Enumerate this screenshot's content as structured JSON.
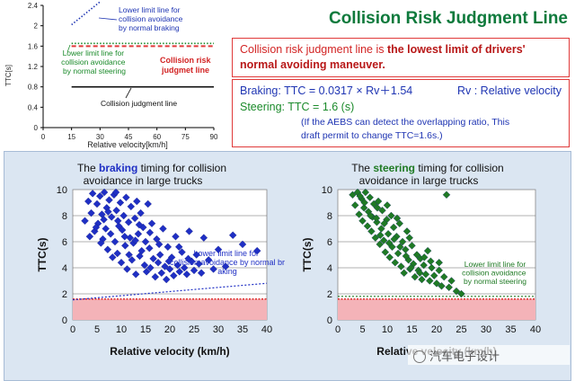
{
  "header": {
    "title": "Collision Risk Judgment Line",
    "definition_part1": "Collision risk judgment line is ",
    "definition_part2": "the lowest limit of drivers' normal avoiding maneuver.",
    "braking_formula": "Braking: TTC = 0.0317 × Rv＋1.54",
    "rv_note": "Rv : Relative velocity",
    "steering_formula": "Steering: TTC = 1.6 (s)",
    "aebs_note_line1": "(If the AEBS can detect the overlapping ratio, This",
    "aebs_note_line2": "draft permit to change TTC=1.6s.)"
  },
  "watermark": "汽车电子设计",
  "colors": {
    "title_green": "#0e7a3c",
    "red": "#e03a3a",
    "blue": "#1f35b3",
    "green": "#1a8a2a",
    "pink_band": "#f4b3b8",
    "panel_bg": "#dbe6f2"
  },
  "chart_data": [
    {
      "type": "line",
      "xlabel": "Relative velocity[km/h]",
      "ylabel": "TTC[s]",
      "xlim": [
        0,
        90
      ],
      "ylim": [
        0,
        2.4
      ],
      "xticks": [
        "0",
        "15",
        "30",
        "45",
        "60",
        "75",
        "90"
      ],
      "yticks": [
        "0",
        "0.4",
        "0.8",
        "1.2",
        "1.6",
        "2",
        "2.4"
      ],
      "series": [
        {
          "label": "Lower limit line for collision avoidance by normal braking",
          "style": "dotted",
          "color": "#1f35b3",
          "x": [
            15,
            30
          ],
          "y": [
            2.02,
            2.48
          ]
        },
        {
          "label": "Lower limit line for collision avoidance by normal steering",
          "style": "dotted",
          "color": "#1a8a2a",
          "x": [
            15,
            90
          ],
          "y": [
            1.6,
            1.6
          ]
        },
        {
          "label": "Collision risk judgmet line",
          "style": "dashed",
          "color": "#e03a3a",
          "x": [
            15,
            90
          ],
          "y": [
            1.6,
            1.6
          ]
        },
        {
          "label": "Collision judgment line",
          "style": "solid",
          "color": "#111111",
          "x": [
            15,
            90
          ],
          "y": [
            0.8,
            0.8
          ]
        }
      ],
      "annotations": [
        "Lower limit line for collision avoidance by normal braking",
        "Lower limit line for collision avoidance by normal steering",
        "Collision risk judgmet line",
        "Collision judgment line"
      ]
    },
    {
      "type": "scatter",
      "title_pre": "The ",
      "title_key": "braking",
      "title_post": " timing for collision",
      "title_line2": "avoidance in large trucks",
      "xlabel": "Relative velocity (km/h)",
      "ylabel": "TTC(s)",
      "xlim": [
        0,
        40
      ],
      "ylim": [
        0,
        10
      ],
      "xticks": [
        "0",
        "5",
        "10",
        "15",
        "20",
        "25",
        "30",
        "35",
        "40"
      ],
      "yticks": [
        "0",
        "2",
        "4",
        "6",
        "8",
        "10"
      ],
      "color": "#1f2fc4",
      "line_label": "Lower limit line for collision avoidance by normal braking",
      "line": {
        "x": [
          0,
          40
        ],
        "y": [
          1.54,
          2.81
        ]
      },
      "points": [
        [
          2.5,
          7.6
        ],
        [
          3.2,
          9.1
        ],
        [
          3.8,
          8.2
        ],
        [
          4.1,
          9.7
        ],
        [
          4.5,
          6.8
        ],
        [
          5.0,
          8.9
        ],
        [
          5.2,
          7.4
        ],
        [
          5.6,
          9.5
        ],
        [
          6.0,
          8.1
        ],
        [
          6.2,
          6.2
        ],
        [
          6.5,
          9.8
        ],
        [
          6.8,
          7.0
        ],
        [
          7.0,
          8.6
        ],
        [
          7.2,
          5.4
        ],
        [
          7.5,
          9.2
        ],
        [
          7.8,
          6.6
        ],
        [
          8.0,
          7.9
        ],
        [
          8.2,
          4.8
        ],
        [
          8.5,
          9.6
        ],
        [
          8.7,
          6.0
        ],
        [
          9.0,
          8.4
        ],
        [
          9.2,
          5.1
        ],
        [
          9.5,
          7.2
        ],
        [
          9.8,
          9.0
        ],
        [
          10.0,
          4.4
        ],
        [
          10.2,
          6.9
        ],
        [
          10.5,
          8.0
        ],
        [
          10.8,
          5.7
        ],
        [
          11.0,
          9.4
        ],
        [
          11.2,
          3.9
        ],
        [
          11.5,
          7.5
        ],
        [
          11.8,
          6.3
        ],
        [
          12.0,
          8.7
        ],
        [
          12.2,
          4.6
        ],
        [
          12.5,
          5.9
        ],
        [
          12.8,
          7.8
        ],
        [
          13.0,
          3.5
        ],
        [
          13.2,
          9.1
        ],
        [
          13.5,
          6.6
        ],
        [
          13.8,
          4.9
        ],
        [
          14.0,
          8.2
        ],
        [
          14.2,
          5.3
        ],
        [
          14.5,
          7.1
        ],
        [
          14.8,
          4.2
        ],
        [
          15.0,
          6.0
        ],
        [
          15.2,
          3.7
        ],
        [
          15.5,
          8.9
        ],
        [
          15.8,
          5.5
        ],
        [
          16.0,
          4.0
        ],
        [
          16.3,
          7.4
        ],
        [
          16.6,
          4.7
        ],
        [
          17.0,
          3.3
        ],
        [
          17.3,
          6.2
        ],
        [
          17.6,
          4.4
        ],
        [
          18.0,
          5.0
        ],
        [
          18.3,
          3.6
        ],
        [
          18.6,
          7.0
        ],
        [
          19.0,
          4.1
        ],
        [
          19.3,
          3.1
        ],
        [
          19.6,
          5.6
        ],
        [
          20.0,
          3.9
        ],
        [
          20.4,
          4.8
        ],
        [
          20.8,
          3.4
        ],
        [
          21.2,
          6.4
        ],
        [
          21.6,
          4.2
        ],
        [
          22.0,
          3.7
        ],
        [
          22.5,
          5.2
        ],
        [
          23.0,
          4.0
        ],
        [
          23.5,
          3.5
        ],
        [
          24.0,
          6.8
        ],
        [
          24.5,
          4.5
        ],
        [
          25.0,
          3.8
        ],
        [
          25.5,
          5.0
        ],
        [
          26.0,
          4.3
        ],
        [
          26.5,
          3.6
        ],
        [
          27.0,
          6.3
        ],
        [
          28.0,
          4.6
        ],
        [
          29.0,
          3.9
        ],
        [
          30.0,
          5.4
        ],
        [
          31.5,
          4.1
        ],
        [
          33.0,
          6.5
        ],
        [
          35.0,
          5.8
        ],
        [
          38.0,
          5.3
        ],
        [
          6.4,
          7.7
        ],
        [
          7.3,
          8.3
        ],
        [
          9.3,
          7.6
        ],
        [
          10.7,
          6.4
        ],
        [
          11.6,
          5.0
        ],
        [
          12.9,
          6.1
        ],
        [
          13.7,
          7.3
        ],
        [
          15.9,
          6.7
        ],
        [
          17.8,
          5.8
        ],
        [
          19.8,
          4.5
        ],
        [
          21.9,
          5.6
        ],
        [
          23.8,
          4.7
        ],
        [
          8.9,
          9.9
        ],
        [
          5.8,
          5.9
        ],
        [
          4.8,
          7.1
        ],
        [
          3.5,
          6.4
        ]
      ]
    },
    {
      "type": "scatter",
      "title_pre": "The ",
      "title_key": "steering",
      "title_post": " timing for collision",
      "title_line2": "avoidance in large trucks",
      "xlabel": "Relative velocity (km/h)",
      "ylabel": "TTC(s)",
      "xlim": [
        0,
        40
      ],
      "ylim": [
        0,
        10
      ],
      "xticks": [
        "0",
        "5",
        "10",
        "15",
        "20",
        "25",
        "30",
        "35",
        "40"
      ],
      "yticks": [
        "0",
        "2",
        "4",
        "6",
        "8",
        "10"
      ],
      "color": "#1f7a24",
      "line_label": "Lower limit line for collision avoidance by normal steering",
      "line": {
        "x": [
          0,
          40
        ],
        "y": [
          1.6,
          1.6
        ]
      },
      "points": [
        [
          3.0,
          9.6
        ],
        [
          3.5,
          8.8
        ],
        [
          4.0,
          9.9
        ],
        [
          4.3,
          8.1
        ],
        [
          4.8,
          9.3
        ],
        [
          5.0,
          7.6
        ],
        [
          5.3,
          8.6
        ],
        [
          5.6,
          9.8
        ],
        [
          6.0,
          7.2
        ],
        [
          6.2,
          8.3
        ],
        [
          6.5,
          9.4
        ],
        [
          6.8,
          6.8
        ],
        [
          7.0,
          7.9
        ],
        [
          7.3,
          8.9
        ],
        [
          7.6,
          6.3
        ],
        [
          7.9,
          7.5
        ],
        [
          8.2,
          9.1
        ],
        [
          8.5,
          5.8
        ],
        [
          8.8,
          7.0
        ],
        [
          9.0,
          8.4
        ],
        [
          9.3,
          6.1
        ],
        [
          9.6,
          5.2
        ],
        [
          9.9,
          7.7
        ],
        [
          10.2,
          6.6
        ],
        [
          10.5,
          4.8
        ],
        [
          10.8,
          8.0
        ],
        [
          11.0,
          5.6
        ],
        [
          11.3,
          7.1
        ],
        [
          11.6,
          4.4
        ],
        [
          11.9,
          6.4
        ],
        [
          12.2,
          5.1
        ],
        [
          12.5,
          7.4
        ],
        [
          12.8,
          4.1
        ],
        [
          13.1,
          6.0
        ],
        [
          13.4,
          3.6
        ],
        [
          13.7,
          5.4
        ],
        [
          14.0,
          6.8
        ],
        [
          14.3,
          4.6
        ],
        [
          14.6,
          3.9
        ],
        [
          15.0,
          5.7
        ],
        [
          15.3,
          4.3
        ],
        [
          15.6,
          3.3
        ],
        [
          16.0,
          5.0
        ],
        [
          16.3,
          3.8
        ],
        [
          16.7,
          4.7
        ],
        [
          17.0,
          3.1
        ],
        [
          17.4,
          4.2
        ],
        [
          17.8,
          3.5
        ],
        [
          18.2,
          5.3
        ],
        [
          18.6,
          3.0
        ],
        [
          19.0,
          4.0
        ],
        [
          19.5,
          3.4
        ],
        [
          20.0,
          2.8
        ],
        [
          20.5,
          3.8
        ],
        [
          21.0,
          2.6
        ],
        [
          21.5,
          3.3
        ],
        [
          22.0,
          9.6
        ],
        [
          22.5,
          2.5
        ],
        [
          23.0,
          3.0
        ],
        [
          24.0,
          2.2
        ],
        [
          25.0,
          2.0
        ],
        [
          6.6,
          8.0
        ],
        [
          7.8,
          7.8
        ],
        [
          8.6,
          6.5
        ],
        [
          9.4,
          7.4
        ],
        [
          10.4,
          5.9
        ],
        [
          11.4,
          6.2
        ],
        [
          12.6,
          5.6
        ],
        [
          13.8,
          4.9
        ],
        [
          14.8,
          4.0
        ],
        [
          16.6,
          3.6
        ],
        [
          18.8,
          4.5
        ],
        [
          5.4,
          9.0
        ],
        [
          4.5,
          9.5
        ],
        [
          8.0,
          8.6
        ],
        [
          10.0,
          8.8
        ],
        [
          12.0,
          7.8
        ],
        [
          14.5,
          6.3
        ],
        [
          17.5,
          4.8
        ],
        [
          20.5,
          4.4
        ]
      ]
    }
  ]
}
